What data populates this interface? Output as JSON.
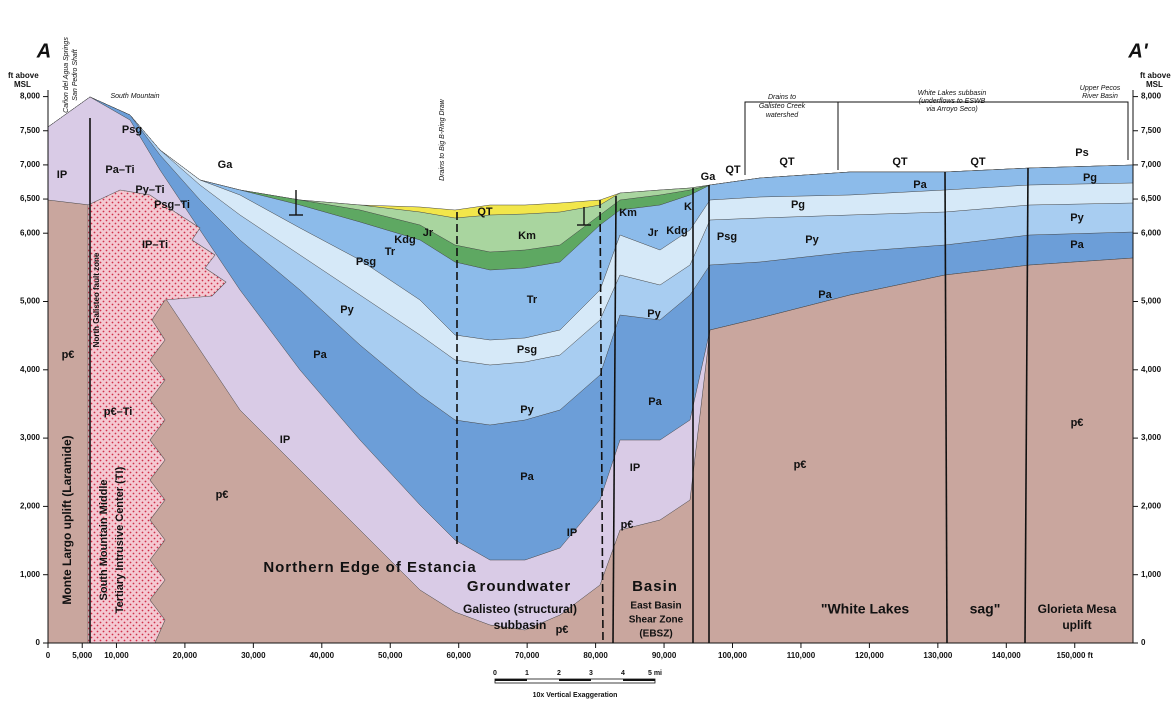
{
  "header": {
    "left_section_label": "A",
    "right_section_label": "A'"
  },
  "y_axis": {
    "unit_line1": "ft above",
    "unit_line2": "MSL",
    "ticks": [
      {
        "value": 8000,
        "label": "8,000"
      },
      {
        "value": 7500,
        "label": "7,500"
      },
      {
        "value": 7000,
        "label": "7,000"
      },
      {
        "value": 6500,
        "label": "6,500"
      },
      {
        "value": 6000,
        "label": "6,000"
      },
      {
        "value": 5000,
        "label": "5,000"
      },
      {
        "value": 4000,
        "label": "4,000"
      },
      {
        "value": 3000,
        "label": "3,000"
      },
      {
        "value": 2000,
        "label": "2,000"
      },
      {
        "value": 1000,
        "label": "1,000"
      },
      0
    ]
  },
  "x_axis": {
    "ticks": [
      0,
      {
        "value": 5000,
        "label": "5,000"
      },
      {
        "value": 10000,
        "label": "10,000"
      },
      {
        "value": 20000,
        "label": "20,000"
      },
      {
        "value": 30000,
        "label": "30,000"
      },
      {
        "value": 40000,
        "label": "40,000"
      },
      {
        "value": 50000,
        "label": "50,000"
      },
      {
        "value": 60000,
        "label": "60,000"
      },
      {
        "value": 70000,
        "label": "70,000"
      },
      {
        "value": 80000,
        "label": "80,000"
      },
      {
        "value": 90000,
        "label": "90,000"
      },
      {
        "value": 100000,
        "label": "100,000"
      },
      {
        "value": 110000,
        "label": "110,000"
      },
      {
        "value": 120000,
        "label": "120,000"
      },
      {
        "value": 130000,
        "label": "130,000"
      },
      {
        "value": 140000,
        "label": "140,000"
      },
      {
        "value": 150000,
        "label": "150,000 ft"
      }
    ]
  },
  "unit_labels": [
    "IP",
    "Pa–Ti",
    "Py–Ti",
    "Psg–Ti",
    "Psg",
    "IP–Ti",
    "p€",
    "p€–Ti",
    "IP",
    "p€",
    "Pa",
    "Py",
    "Psg",
    "Tr",
    "Kdg",
    "Jr",
    "QT",
    "Km",
    "Tr",
    "Psg",
    "Py",
    "Pa",
    "IP",
    "p€",
    "Km",
    "Jr",
    "Kdg",
    "Py",
    "Pa",
    "IP",
    "p€",
    "K",
    "Ga",
    "QT",
    "Psg",
    "Pg",
    "Py",
    "Pa",
    "p€",
    "QT",
    "QT",
    "Pa",
    "Ps",
    "Pg",
    "Py",
    "Pa",
    "p€",
    "QT",
    "Ga"
  ],
  "region_labels": {
    "northern_edge": "Northern Edge of Estancia",
    "groundwater": "Groundwater",
    "basin": "Basin",
    "galisteo_1": "Galisteo (structural)",
    "galisteo_2": "subbasin",
    "ebsz_1": "East Basin",
    "ebsz_2": "Shear Zone",
    "ebsz_3": "(EBSZ)",
    "white_lakes": "\"White Lakes",
    "sag": "sag\"",
    "glorieta_1": "Glorieta Mesa",
    "glorieta_2": "uplift",
    "monte_largo": "Monte Largo uplift (Laramide)",
    "south_mountain_1": "South Mountain Middle",
    "south_mountain_2": "Tertiary Intrusive Center (TI)",
    "fault_zone": "North Galisteo fault zone"
  },
  "annotations": {
    "springs": "Cañon del Agua Springs",
    "shaft": "San Pedro Shaft",
    "south_mountain": "South Mountain",
    "drains_big": "Drains to Big B-Ring Draw",
    "drains_galisteo_1": "Drains to",
    "drains_galisteo_2": "Galisteo Creek",
    "drains_galisteo_3": "watershed",
    "white_lakes_1": "White Lakes subbasin",
    "white_lakes_2": "(underflows to ESWB",
    "white_lakes_3": "via Arroyo Seco)",
    "pecos_1": "Upper Pecos",
    "pecos_2": "River Basin"
  },
  "scale_bar": {
    "ticks": [
      "0",
      "1",
      "2",
      "3",
      "4",
      "5 mi"
    ],
    "caption": "10x Vertical Exaggeration"
  }
}
